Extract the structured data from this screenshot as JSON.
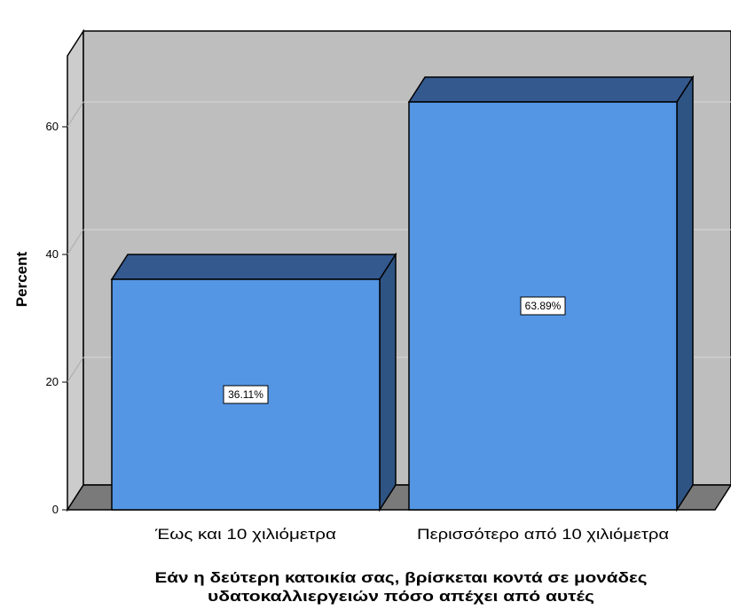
{
  "chart_data": {
    "type": "bar",
    "categories": [
      "Έως και 10 χιλιόμετρα",
      "Περισσότερο από 10 χιλιόμετρα"
    ],
    "values": [
      36.11,
      63.89
    ],
    "data_labels": [
      "36.11%",
      "63.89%"
    ],
    "xlabel_lines": [
      "Εάν η δεύτερη κατοικία σας, βρίσκεται κοντά σε μονάδες",
      "υδατοκαλλιεργειών πόσο απέχει από αυτές"
    ],
    "ylabel": "Percent",
    "ylim": [
      0,
      75
    ],
    "y_ticks": [
      0,
      20,
      40,
      60
    ],
    "grid": true,
    "style": "3d",
    "colors": {
      "bar_front": "#5496E4",
      "bar_top": "#34598F",
      "bar_side": "#2E5484",
      "back_wall": "#BEBEBE",
      "side_wall": "#CCCCCC",
      "floor": "#7A7A7A",
      "grid": "#D8D8D8"
    }
  }
}
